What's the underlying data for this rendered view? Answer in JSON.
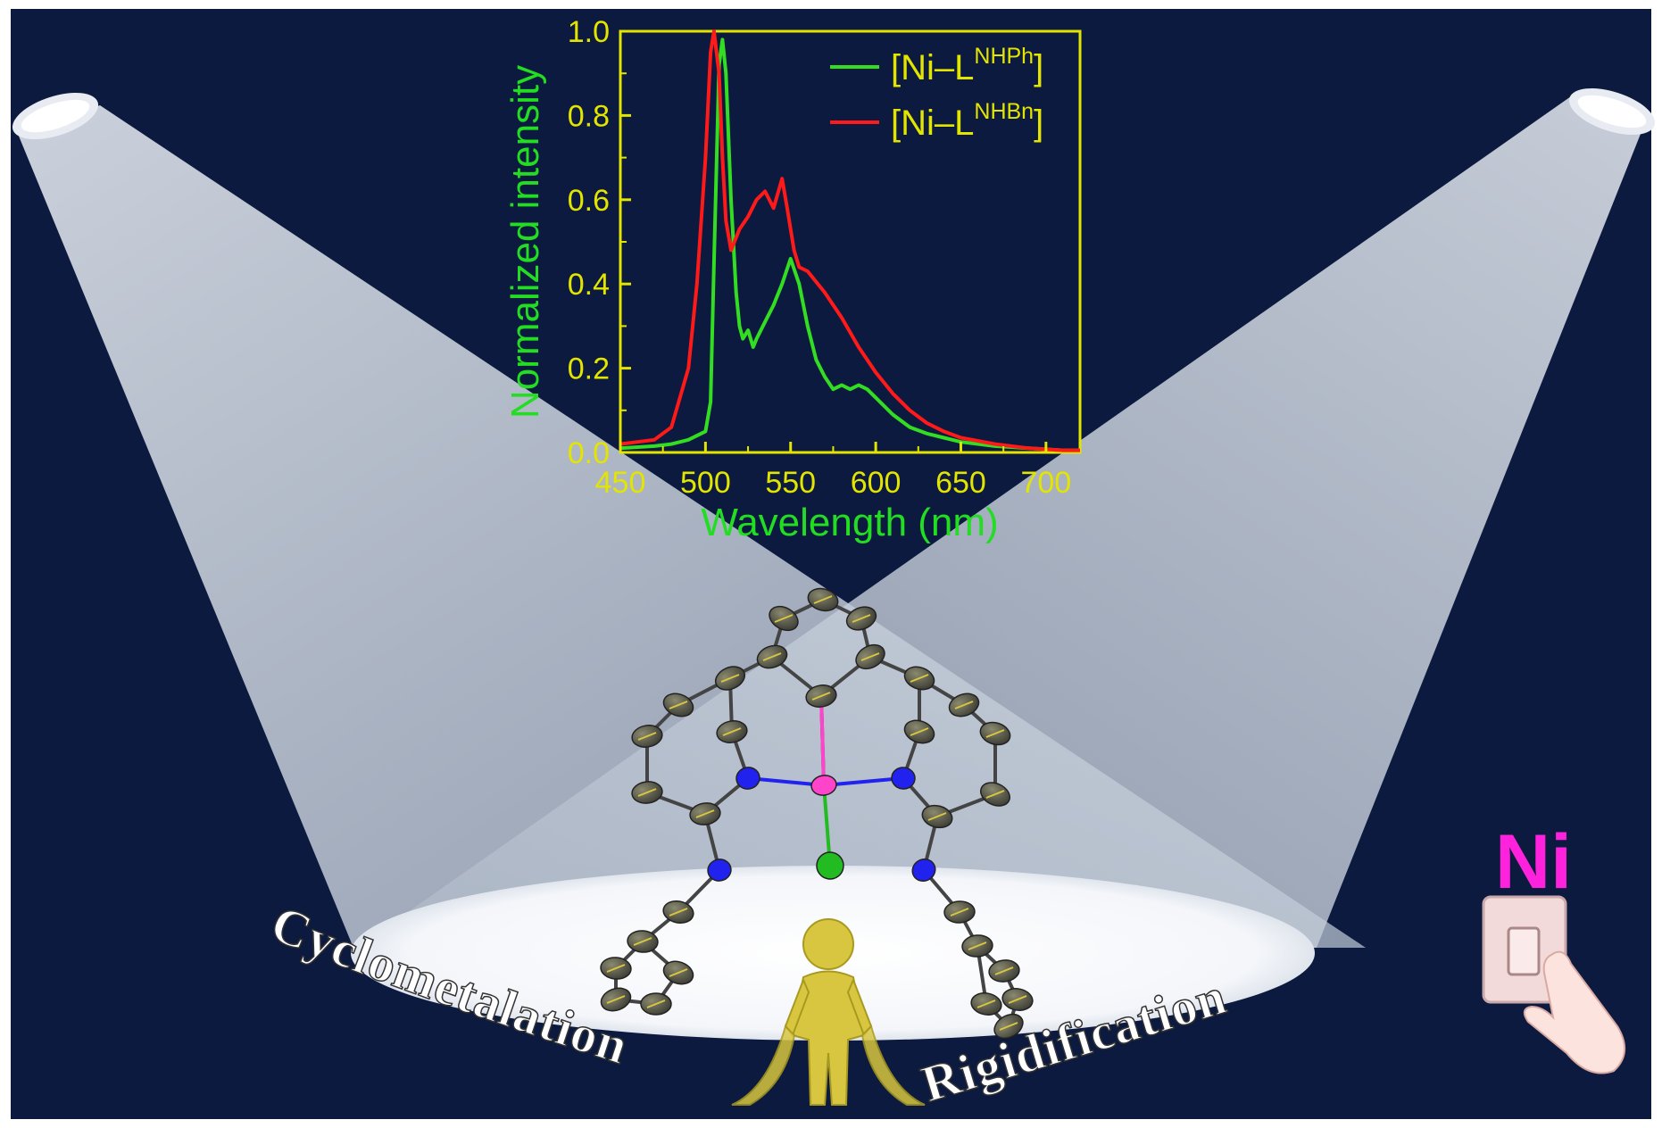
{
  "colors": {
    "background": "#0b1a3e",
    "beam": "#c9d3e0",
    "axis": "#e3e400",
    "axis_label": "#22dd22",
    "series_green": "#33dd22",
    "series_red": "#ff1a1a",
    "metal_label": "#ff22dd",
    "atom_n": "#2222ee",
    "atom_ni": "#ff44cc",
    "atom_cl": "#22bb22",
    "atom_c": "#4a4a42",
    "figure_gold": "#d8c640"
  },
  "labels": {
    "left_word": "Cyclometalation",
    "right_word": "Rigidification",
    "metal": "Ni"
  },
  "icons": {
    "spotlight_left": "spotlight-icon",
    "spotlight_right": "spotlight-icon",
    "light_switch": "light-switch-icon",
    "person": "person-figure-icon",
    "molecule": "molecule-structure-icon"
  },
  "chart_data": {
    "type": "line",
    "xlabel": "Wavelength (nm)",
    "ylabel": "Normalized intensity",
    "xlim": [
      450,
      720
    ],
    "ylim": [
      0,
      1.0
    ],
    "xticks": [
      "450",
      "500",
      "550",
      "600",
      "650",
      "700"
    ],
    "yticks": [
      "0.0",
      "0.2",
      "0.4",
      "0.6",
      "0.8",
      "1.0"
    ],
    "legend_position": "top-right",
    "grid": false,
    "series": [
      {
        "name": "[Ni–L^NHPh]",
        "name_main": "[Ni–L",
        "name_sup": "NHPh",
        "name_close": "]",
        "color": "#33dd22",
        "x": [
          450,
          470,
          480,
          490,
          500,
          503,
          505,
          508,
          510,
          512,
          515,
          518,
          520,
          522,
          525,
          528,
          530,
          535,
          540,
          545,
          550,
          555,
          560,
          565,
          570,
          575,
          580,
          585,
          590,
          595,
          600,
          610,
          620,
          630,
          640,
          650,
          670,
          690,
          710,
          720
        ],
        "y": [
          0.01,
          0.015,
          0.02,
          0.03,
          0.05,
          0.12,
          0.45,
          0.92,
          0.98,
          0.9,
          0.6,
          0.38,
          0.3,
          0.27,
          0.29,
          0.25,
          0.27,
          0.31,
          0.35,
          0.4,
          0.46,
          0.4,
          0.3,
          0.22,
          0.18,
          0.15,
          0.16,
          0.15,
          0.16,
          0.15,
          0.13,
          0.09,
          0.06,
          0.045,
          0.035,
          0.025,
          0.015,
          0.01,
          0.005,
          0.005
        ]
      },
      {
        "name": "[Ni–L^NHBn]",
        "name_main": "[Ni–L",
        "name_sup": "NHBn",
        "name_close": "]",
        "color": "#ff1a1a",
        "x": [
          450,
          470,
          480,
          490,
          495,
          500,
          503,
          505,
          508,
          510,
          512,
          515,
          520,
          525,
          530,
          535,
          540,
          545,
          548,
          552,
          555,
          560,
          570,
          580,
          590,
          600,
          610,
          620,
          630,
          640,
          650,
          670,
          690,
          710,
          720
        ],
        "y": [
          0.02,
          0.03,
          0.06,
          0.2,
          0.4,
          0.7,
          0.95,
          1.0,
          0.9,
          0.7,
          0.55,
          0.48,
          0.53,
          0.56,
          0.6,
          0.62,
          0.58,
          0.65,
          0.58,
          0.48,
          0.44,
          0.43,
          0.38,
          0.32,
          0.25,
          0.19,
          0.14,
          0.1,
          0.07,
          0.05,
          0.035,
          0.02,
          0.01,
          0.005,
          0.005
        ]
      }
    ]
  }
}
